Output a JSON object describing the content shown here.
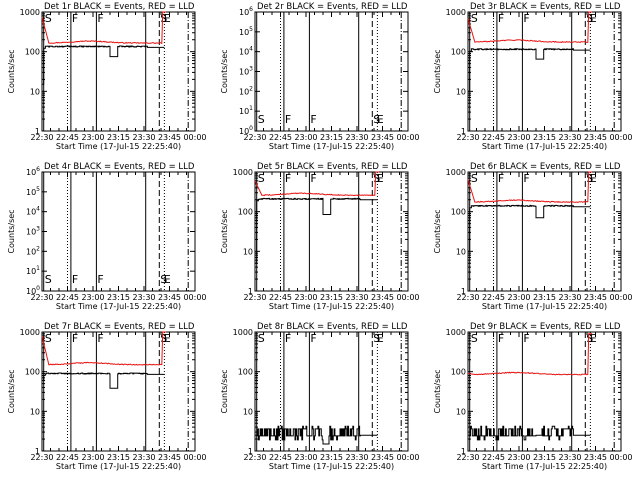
{
  "colors": {
    "events": "#000000",
    "lld": "#e8120f",
    "frame": "#000000",
    "background": "#ffffff"
  },
  "x_ticks": [
    "22:30",
    "22:45",
    "23:00",
    "23:15",
    "23:30",
    "23:45",
    "00:00"
  ],
  "x_tick_minutes": [
    0,
    15,
    30,
    45,
    60,
    75,
    90
  ],
  "xlabel": "Start Time (17-Jul-15 22:25:40)",
  "ylabel": "Counts/sec",
  "markers": [
    {
      "label": "S",
      "minute": 1
    },
    {
      "label": "F",
      "minute": 17
    },
    {
      "label": "F",
      "minute": 32
    },
    {
      "label": "S",
      "minute": 69
    },
    {
      "label": "E",
      "minute": 71
    }
  ],
  "vlines": [
    {
      "minute": 1,
      "style": "solid"
    },
    {
      "minute": 15,
      "style": "dotted"
    },
    {
      "minute": 17,
      "style": "solid"
    },
    {
      "minute": 32,
      "style": "solid"
    },
    {
      "minute": 61,
      "style": "solid"
    },
    {
      "minute": 69,
      "style": "dashed"
    },
    {
      "minute": 72,
      "style": "dotted"
    },
    {
      "minute": 86,
      "style": "dashdot"
    }
  ],
  "chart_data": [
    {
      "type": "line",
      "title": "Det 1r BLACK = Events, RED = LLD",
      "yscale": "log",
      "ylim": [
        1,
        1000
      ],
      "yticks": [
        {
          "v": 1,
          "t": "1"
        },
        {
          "v": 10,
          "t": "10"
        },
        {
          "v": 100,
          "t": "100"
        },
        {
          "v": 1000,
          "t": "1000"
        }
      ],
      "lld": {
        "base": 165,
        "start": 750,
        "end": 1000
      },
      "events": {
        "base": 135,
        "dip": 75,
        "start_spike": 15,
        "noisy": false
      }
    },
    {
      "type": "line",
      "title": "Det 2r BLACK = Events, RED = LLD",
      "yscale": "log",
      "ylim": [
        1,
        1000000
      ],
      "yticks": [
        {
          "v": 1,
          "t": "10^0"
        },
        {
          "v": 10,
          "t": "10^1"
        },
        {
          "v": 100,
          "t": "10^2"
        },
        {
          "v": 1000,
          "t": "10^3"
        },
        {
          "v": 10000,
          "t": "10^4"
        },
        {
          "v": 100000,
          "t": "10^5"
        },
        {
          "v": 1000000,
          "t": "10^6"
        }
      ],
      "lld": null,
      "events": null
    },
    {
      "type": "line",
      "title": "Det 3r BLACK = Events, RED = LLD",
      "yscale": "log",
      "ylim": [
        1,
        1000
      ],
      "yticks": [
        {
          "v": 1,
          "t": "1"
        },
        {
          "v": 10,
          "t": "10"
        },
        {
          "v": 100,
          "t": "100"
        },
        {
          "v": 1000,
          "t": "1000"
        }
      ],
      "lld": {
        "base": 175,
        "start": 700,
        "end": 1000
      },
      "events": {
        "base": 115,
        "dip": 65,
        "start_spike": 10,
        "noisy": false
      }
    },
    {
      "type": "line",
      "title": "Det 4r BLACK = Events, RED = LLD",
      "yscale": "log",
      "ylim": [
        1,
        1000000
      ],
      "yticks": [
        {
          "v": 1,
          "t": "10^0"
        },
        {
          "v": 10,
          "t": "10^1"
        },
        {
          "v": 100,
          "t": "10^2"
        },
        {
          "v": 1000,
          "t": "10^3"
        },
        {
          "v": 10000,
          "t": "10^4"
        },
        {
          "v": 100000,
          "t": "10^5"
        },
        {
          "v": 1000000,
          "t": "10^6"
        }
      ],
      "lld": null,
      "events": null
    },
    {
      "type": "line",
      "title": "Det 5r BLACK = Events, RED = LLD",
      "yscale": "log",
      "ylim": [
        1,
        1000
      ],
      "yticks": [
        {
          "v": 1,
          "t": "1"
        },
        {
          "v": 10,
          "t": "10"
        },
        {
          "v": 100,
          "t": "100"
        },
        {
          "v": 1000,
          "t": "1000"
        }
      ],
      "lld": {
        "base": 260,
        "start": 600,
        "end": 1000
      },
      "events": {
        "base": 210,
        "dip": 85,
        "start_spike": 5,
        "noisy": false
      }
    },
    {
      "type": "line",
      "title": "Det 6r BLACK = Events, RED = LLD",
      "yscale": "log",
      "ylim": [
        1,
        1000
      ],
      "yticks": [
        {
          "v": 1,
          "t": "1"
        },
        {
          "v": 10,
          "t": "10"
        },
        {
          "v": 100,
          "t": "100"
        },
        {
          "v": 1000,
          "t": "1000"
        }
      ],
      "lld": {
        "base": 175,
        "start": 650,
        "end": 1000
      },
      "events": {
        "base": 140,
        "dip": 70,
        "start_spike": 10,
        "noisy": false
      }
    },
    {
      "type": "line",
      "title": "Det 7r BLACK = Events, RED = LLD",
      "yscale": "log",
      "ylim": [
        1,
        1000
      ],
      "yticks": [
        {
          "v": 1,
          "t": "1"
        },
        {
          "v": 10,
          "t": "10"
        },
        {
          "v": 100,
          "t": "100"
        },
        {
          "v": 1000,
          "t": "1000"
        }
      ],
      "lld": {
        "base": 150,
        "start": 800,
        "end": 1000
      },
      "events": {
        "base": 90,
        "dip": 38,
        "start_spike": 60,
        "noisy": false
      }
    },
    {
      "type": "line",
      "title": "Det 8r BLACK = Events, RED = LLD",
      "yscale": "log",
      "ylim": [
        1,
        1000
      ],
      "yticks": [
        {
          "v": 1,
          "t": "1"
        },
        {
          "v": 10,
          "t": "10"
        },
        {
          "v": 100,
          "t": "100"
        },
        {
          "v": 1000,
          "t": "1000"
        }
      ],
      "lld": null,
      "events": {
        "base": 2.5,
        "dip": 1.5,
        "start_spike": 2.5,
        "noisy": true
      }
    },
    {
      "type": "line",
      "title": "Det 9r BLACK = Events, RED = LLD",
      "yscale": "log",
      "ylim": [
        1,
        1000
      ],
      "yticks": [
        {
          "v": 1,
          "t": "1"
        },
        {
          "v": 10,
          "t": "10"
        },
        {
          "v": 100,
          "t": "100"
        },
        {
          "v": 1000,
          "t": "1000"
        }
      ],
      "lld": {
        "base": 85,
        "start": 90,
        "end": 900
      },
      "events": {
        "base": 2.5,
        "dip": 2.5,
        "start_spike": 2.5,
        "noisy": true
      }
    }
  ]
}
